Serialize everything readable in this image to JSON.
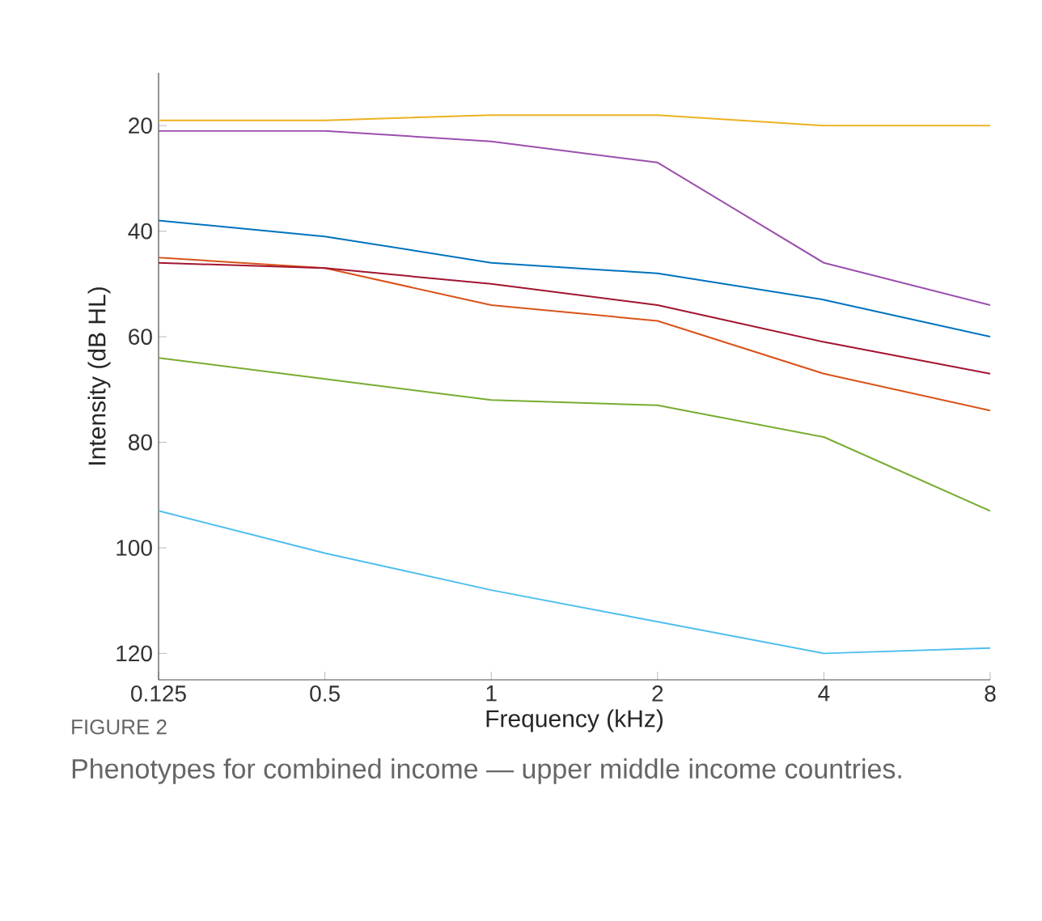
{
  "chart_data": {
    "type": "line",
    "xlabel": "Frequency (kHz)",
    "ylabel": "Intensity (dB HL)",
    "categories": [
      "0.125",
      "0.5",
      "1",
      "2",
      "4",
      "8"
    ],
    "ylim": [
      125,
      10
    ],
    "yticks": [
      20,
      40,
      60,
      80,
      100,
      120
    ],
    "series": [
      {
        "color": "#0072bd",
        "values": [
          38,
          41,
          46,
          48,
          53,
          60
        ]
      },
      {
        "color": "#d95319",
        "values": [
          45,
          47,
          54,
          57,
          67,
          74
        ]
      },
      {
        "color": "#edb120",
        "values": [
          19,
          19,
          18,
          18,
          20,
          20
        ]
      },
      {
        "color": "#9b4fae",
        "values": [
          21,
          21,
          23,
          27,
          46,
          54
        ]
      },
      {
        "color": "#77ac30",
        "values": [
          64,
          68,
          72,
          73,
          79,
          93
        ]
      },
      {
        "color": "#4dbeee",
        "values": [
          93,
          101,
          108,
          114,
          120,
          119
        ]
      },
      {
        "color": "#a2142f",
        "values": [
          46,
          47,
          50,
          54,
          61,
          67
        ]
      }
    ],
    "annotations": [
      "FIGURE 2",
      "Phenotypes for combined income — upper middle income countries."
    ],
    "grid": false,
    "marker": "none",
    "line_style": "solid"
  }
}
